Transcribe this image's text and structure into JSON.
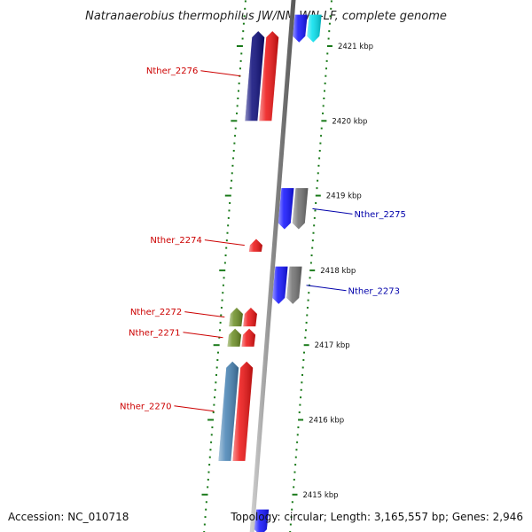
{
  "title": "Natranaerobius thermophilus JW/NM-WN-LF, complete genome",
  "footer": {
    "accession": "Accession: NC_010718",
    "summary": "Topology: circular; Length: 3,165,557 bp; Genes: 2,946"
  },
  "colors": {
    "backbone": "#8c8c8c",
    "tick": "#1a7a1a",
    "label_forward": "#cc0000",
    "label_reverse": "#0000aa"
  },
  "scale": {
    "unit": "kbp",
    "ticks": [
      2415,
      2416,
      2417,
      2418,
      2419,
      2420,
      2421
    ]
  },
  "genes": [
    {
      "id": "g2277a",
      "name": "",
      "color": "#1010ff",
      "start_kbp": 2421.42,
      "end_kbp": 2421.05,
      "strand": "-",
      "lane": "rev1"
    },
    {
      "id": "g2277b",
      "name": "",
      "color": "#00e0ee",
      "start_kbp": 2421.42,
      "end_kbp": 2421.05,
      "strand": "-",
      "lane": "rev2"
    },
    {
      "id": "g2276a",
      "name": "Nther_2276",
      "color": "#0a0a7a",
      "start_kbp": 2420.0,
      "end_kbp": 2421.2,
      "strand": "+",
      "lane": "fwd2",
      "labeled": true
    },
    {
      "id": "g2276b",
      "name": "",
      "color": "#ee1111",
      "start_kbp": 2420.0,
      "end_kbp": 2421.2,
      "strand": "+",
      "lane": "fwd1"
    },
    {
      "id": "g2275a",
      "name": "",
      "color": "#1010ff",
      "start_kbp": 2419.1,
      "end_kbp": 2418.55,
      "strand": "-",
      "lane": "rev1"
    },
    {
      "id": "g2275b",
      "name": "Nther_2275",
      "color": "#707070",
      "start_kbp": 2419.1,
      "end_kbp": 2418.55,
      "strand": "-",
      "lane": "rev2",
      "labeled": true
    },
    {
      "id": "g2274",
      "name": "Nther_2274",
      "color": "#ee1111",
      "start_kbp": 2418.25,
      "end_kbp": 2418.42,
      "strand": "+",
      "lane": "fwd1",
      "labeled": true
    },
    {
      "id": "g2273a",
      "name": "",
      "color": "#1010ff",
      "start_kbp": 2418.05,
      "end_kbp": 2417.55,
      "strand": "-",
      "lane": "rev1"
    },
    {
      "id": "g2273b",
      "name": "Nther_2273",
      "color": "#707070",
      "start_kbp": 2418.05,
      "end_kbp": 2417.55,
      "strand": "-",
      "lane": "rev2",
      "labeled": true
    },
    {
      "id": "g2272a",
      "name": "Nther_2272",
      "color": "#6b8e23",
      "start_kbp": 2417.25,
      "end_kbp": 2417.5,
      "strand": "+",
      "lane": "fwd2",
      "labeled": true
    },
    {
      "id": "g2272b",
      "name": "",
      "color": "#ee1111",
      "start_kbp": 2417.25,
      "end_kbp": 2417.5,
      "strand": "+",
      "lane": "fwd1"
    },
    {
      "id": "g2271a",
      "name": "Nther_2271",
      "color": "#6b8e23",
      "start_kbp": 2416.98,
      "end_kbp": 2417.22,
      "strand": "+",
      "lane": "fwd2",
      "labeled": true
    },
    {
      "id": "g2271b",
      "name": "",
      "color": "#ee1111",
      "start_kbp": 2416.98,
      "end_kbp": 2417.22,
      "strand": "+",
      "lane": "fwd1"
    },
    {
      "id": "g2270a",
      "name": "Nther_2270",
      "color": "#4682b4",
      "start_kbp": 2415.45,
      "end_kbp": 2416.78,
      "strand": "+",
      "lane": "fwd2",
      "labeled": true
    },
    {
      "id": "g2270b",
      "name": "",
      "color": "#ee1111",
      "start_kbp": 2415.45,
      "end_kbp": 2416.78,
      "strand": "+",
      "lane": "fwd1"
    },
    {
      "id": "g2269",
      "name": "",
      "color": "#1010ff",
      "start_kbp": 2414.8,
      "end_kbp": 2414.45,
      "strand": "-",
      "lane": "rev1"
    }
  ]
}
